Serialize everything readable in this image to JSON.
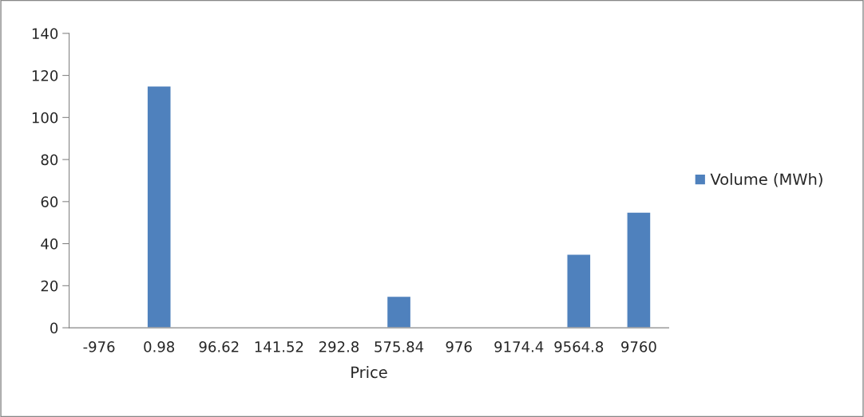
{
  "chart_data": {
    "type": "bar",
    "xlabel": "Price",
    "categories": [
      "-976",
      "0.98",
      "96.62",
      "141.52",
      "292.8",
      "575.84",
      "976",
      "9174.4",
      "9564.8",
      "9760"
    ],
    "series": [
      {
        "name": "Volume (MWh)",
        "color": "#4f81bd",
        "values": [
          null,
          115,
          null,
          null,
          null,
          15,
          null,
          null,
          35,
          55
        ]
      }
    ],
    "ylim": [
      0,
      140
    ],
    "yticks": [
      0,
      20,
      40,
      60,
      80,
      100,
      120,
      140
    ],
    "grid": false,
    "legend": "right"
  }
}
